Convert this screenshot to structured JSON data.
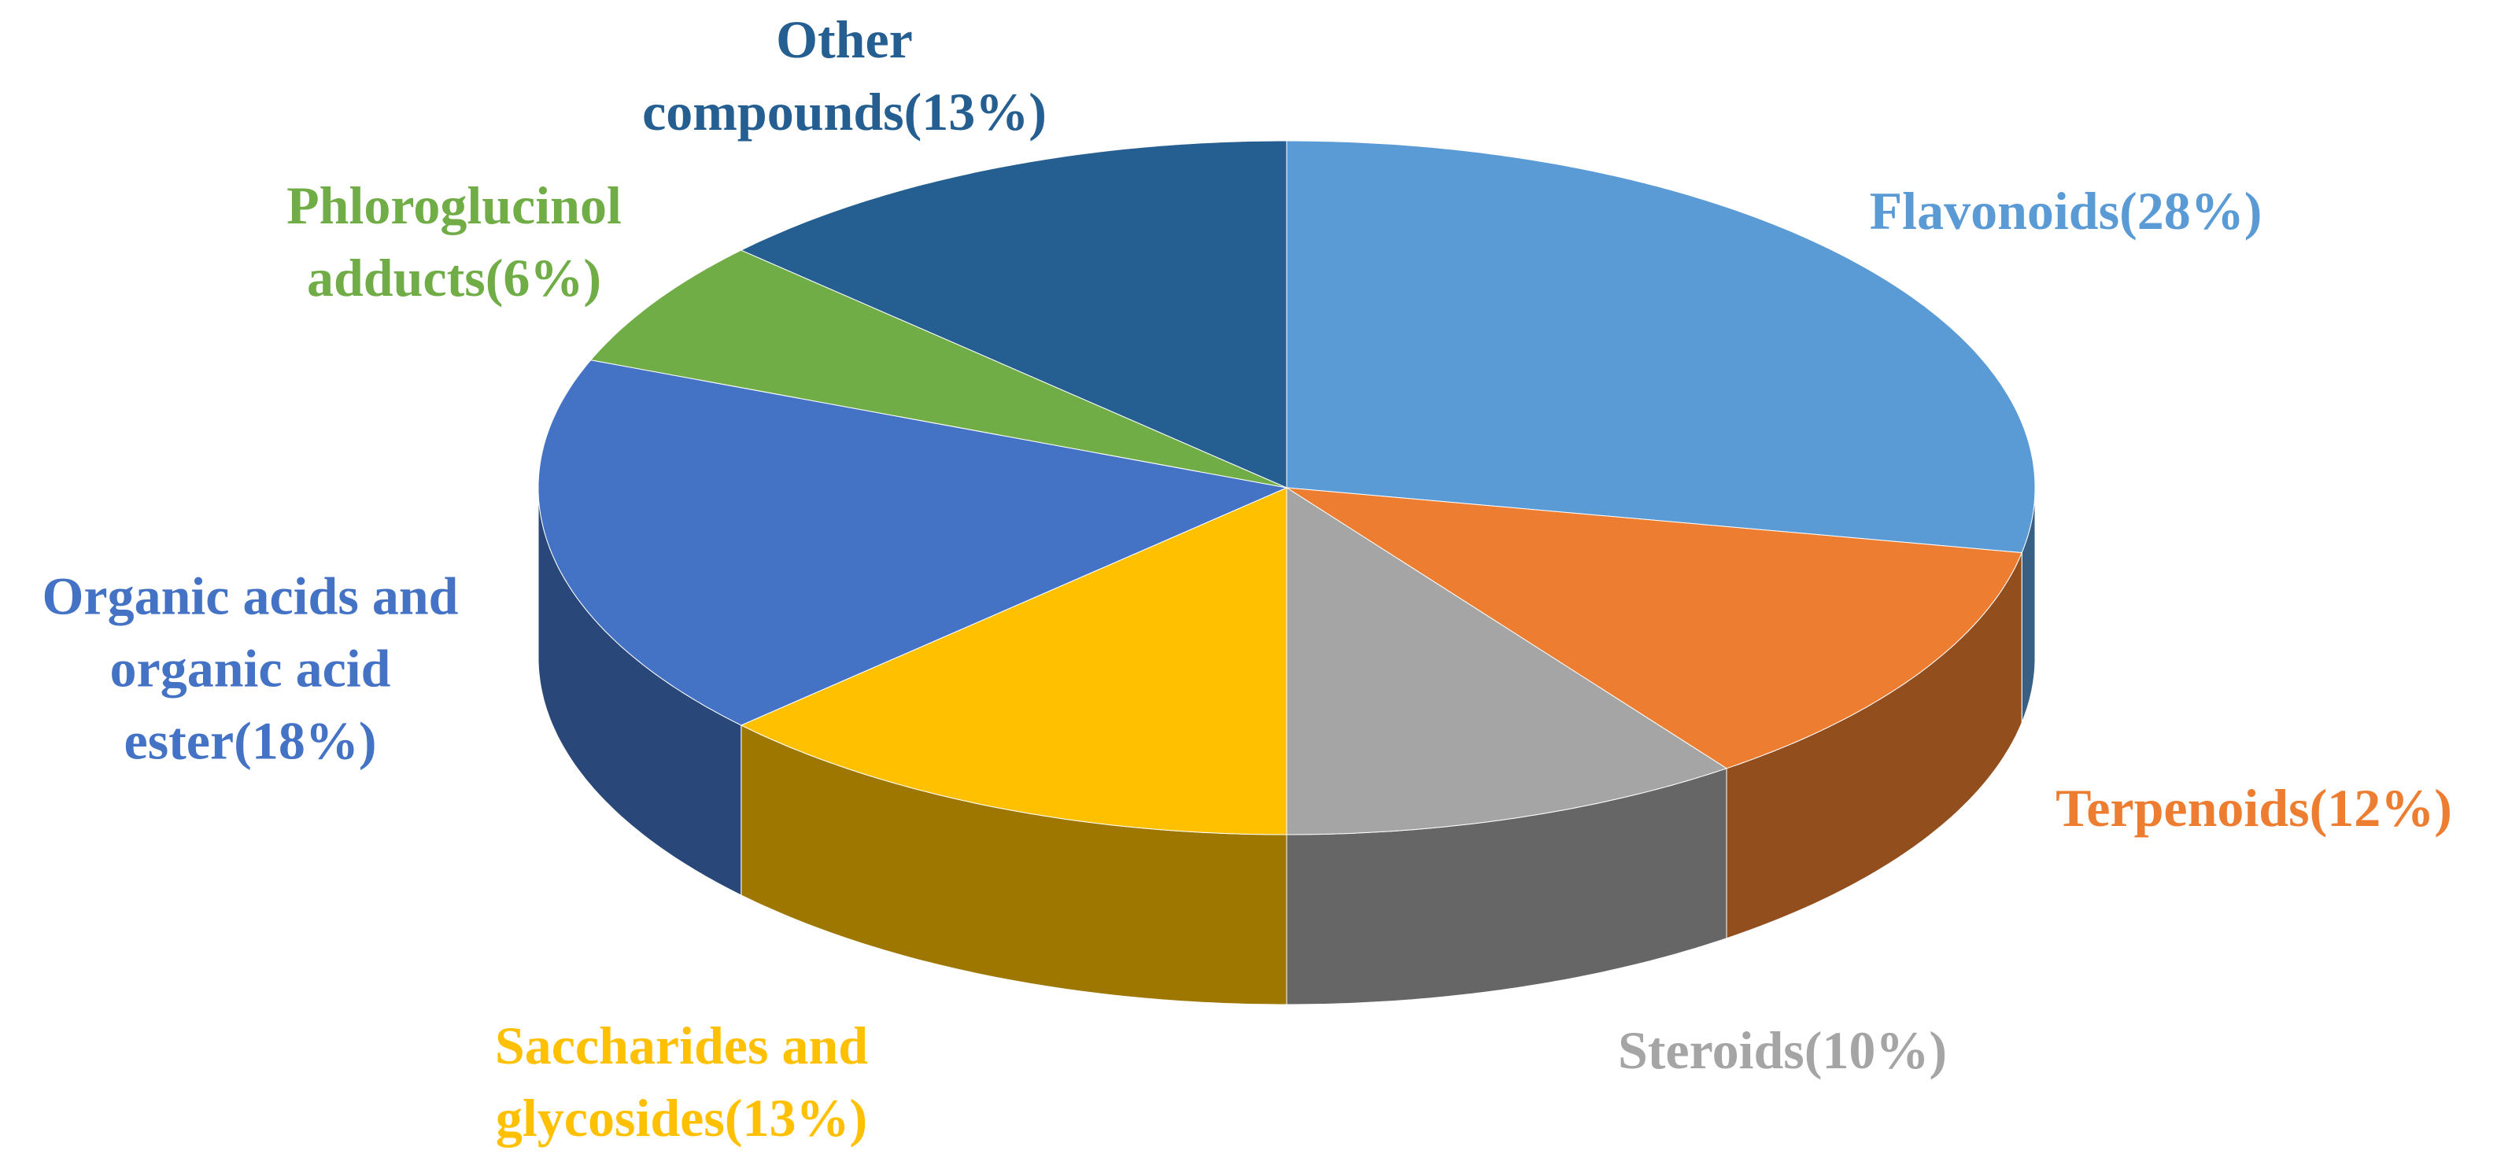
{
  "chart_data": {
    "type": "pie3d",
    "categories": [
      "Flavonoids(28%)",
      "Terpenoids(12%)",
      "Steroids(10%)",
      "Saccharides and glycosides(13%)",
      "Organic acids and organic acid ester(18%)",
      "Phloroglucinol adducts(6%)",
      "Other compounds(13%)"
    ],
    "values": [
      28,
      12,
      10,
      13,
      18,
      6,
      13
    ],
    "colors": [
      "#5b9bd5",
      "#ed7d31",
      "#a5a5a5",
      "#ffc000",
      "#4472c4",
      "#70ad47",
      "#255e91"
    ]
  }
}
